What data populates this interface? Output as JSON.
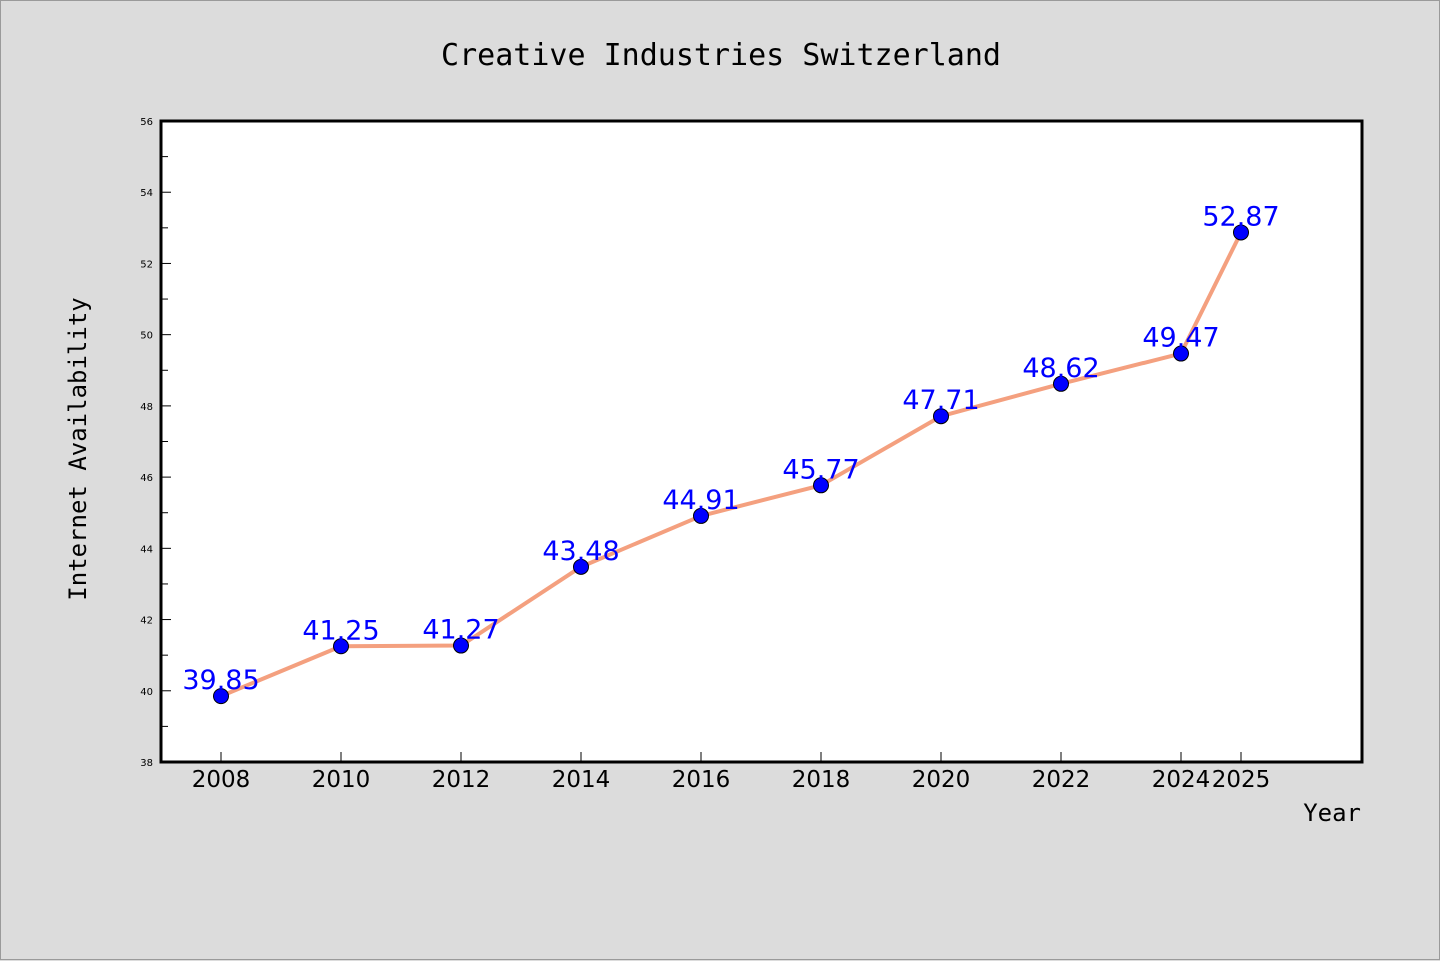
{
  "chart_data": {
    "type": "line",
    "title": "Creative Industries Switzerland",
    "xlabel": "Year",
    "ylabel": "Internet Availability",
    "x": [
      "2008",
      "2010",
      "2012",
      "2014",
      "2016",
      "2018",
      "2020",
      "2022",
      "2024",
      "2025"
    ],
    "series": [
      {
        "values": [
          39.85,
          41.25,
          41.27,
          43.48,
          44.91,
          45.77,
          47.71,
          48.62,
          49.47,
          52.87
        ],
        "labels": [
          "39.85",
          "41.25",
          "41.27",
          "43.48",
          "44.91",
          "45.77",
          "47.71",
          "48.62",
          "49.47",
          "52.87"
        ]
      }
    ],
    "ylim": [
      38,
      56
    ],
    "yticks": [
      "38",
      "40",
      "42",
      "44",
      "46",
      "48",
      "50",
      "52",
      "54",
      "56"
    ],
    "grid": false,
    "colors": {
      "line": "#f4a07f",
      "marker": "#0000ff",
      "label": "#0000ff",
      "background": "#dcdcdc",
      "plot_background": "#ffffff"
    }
  }
}
